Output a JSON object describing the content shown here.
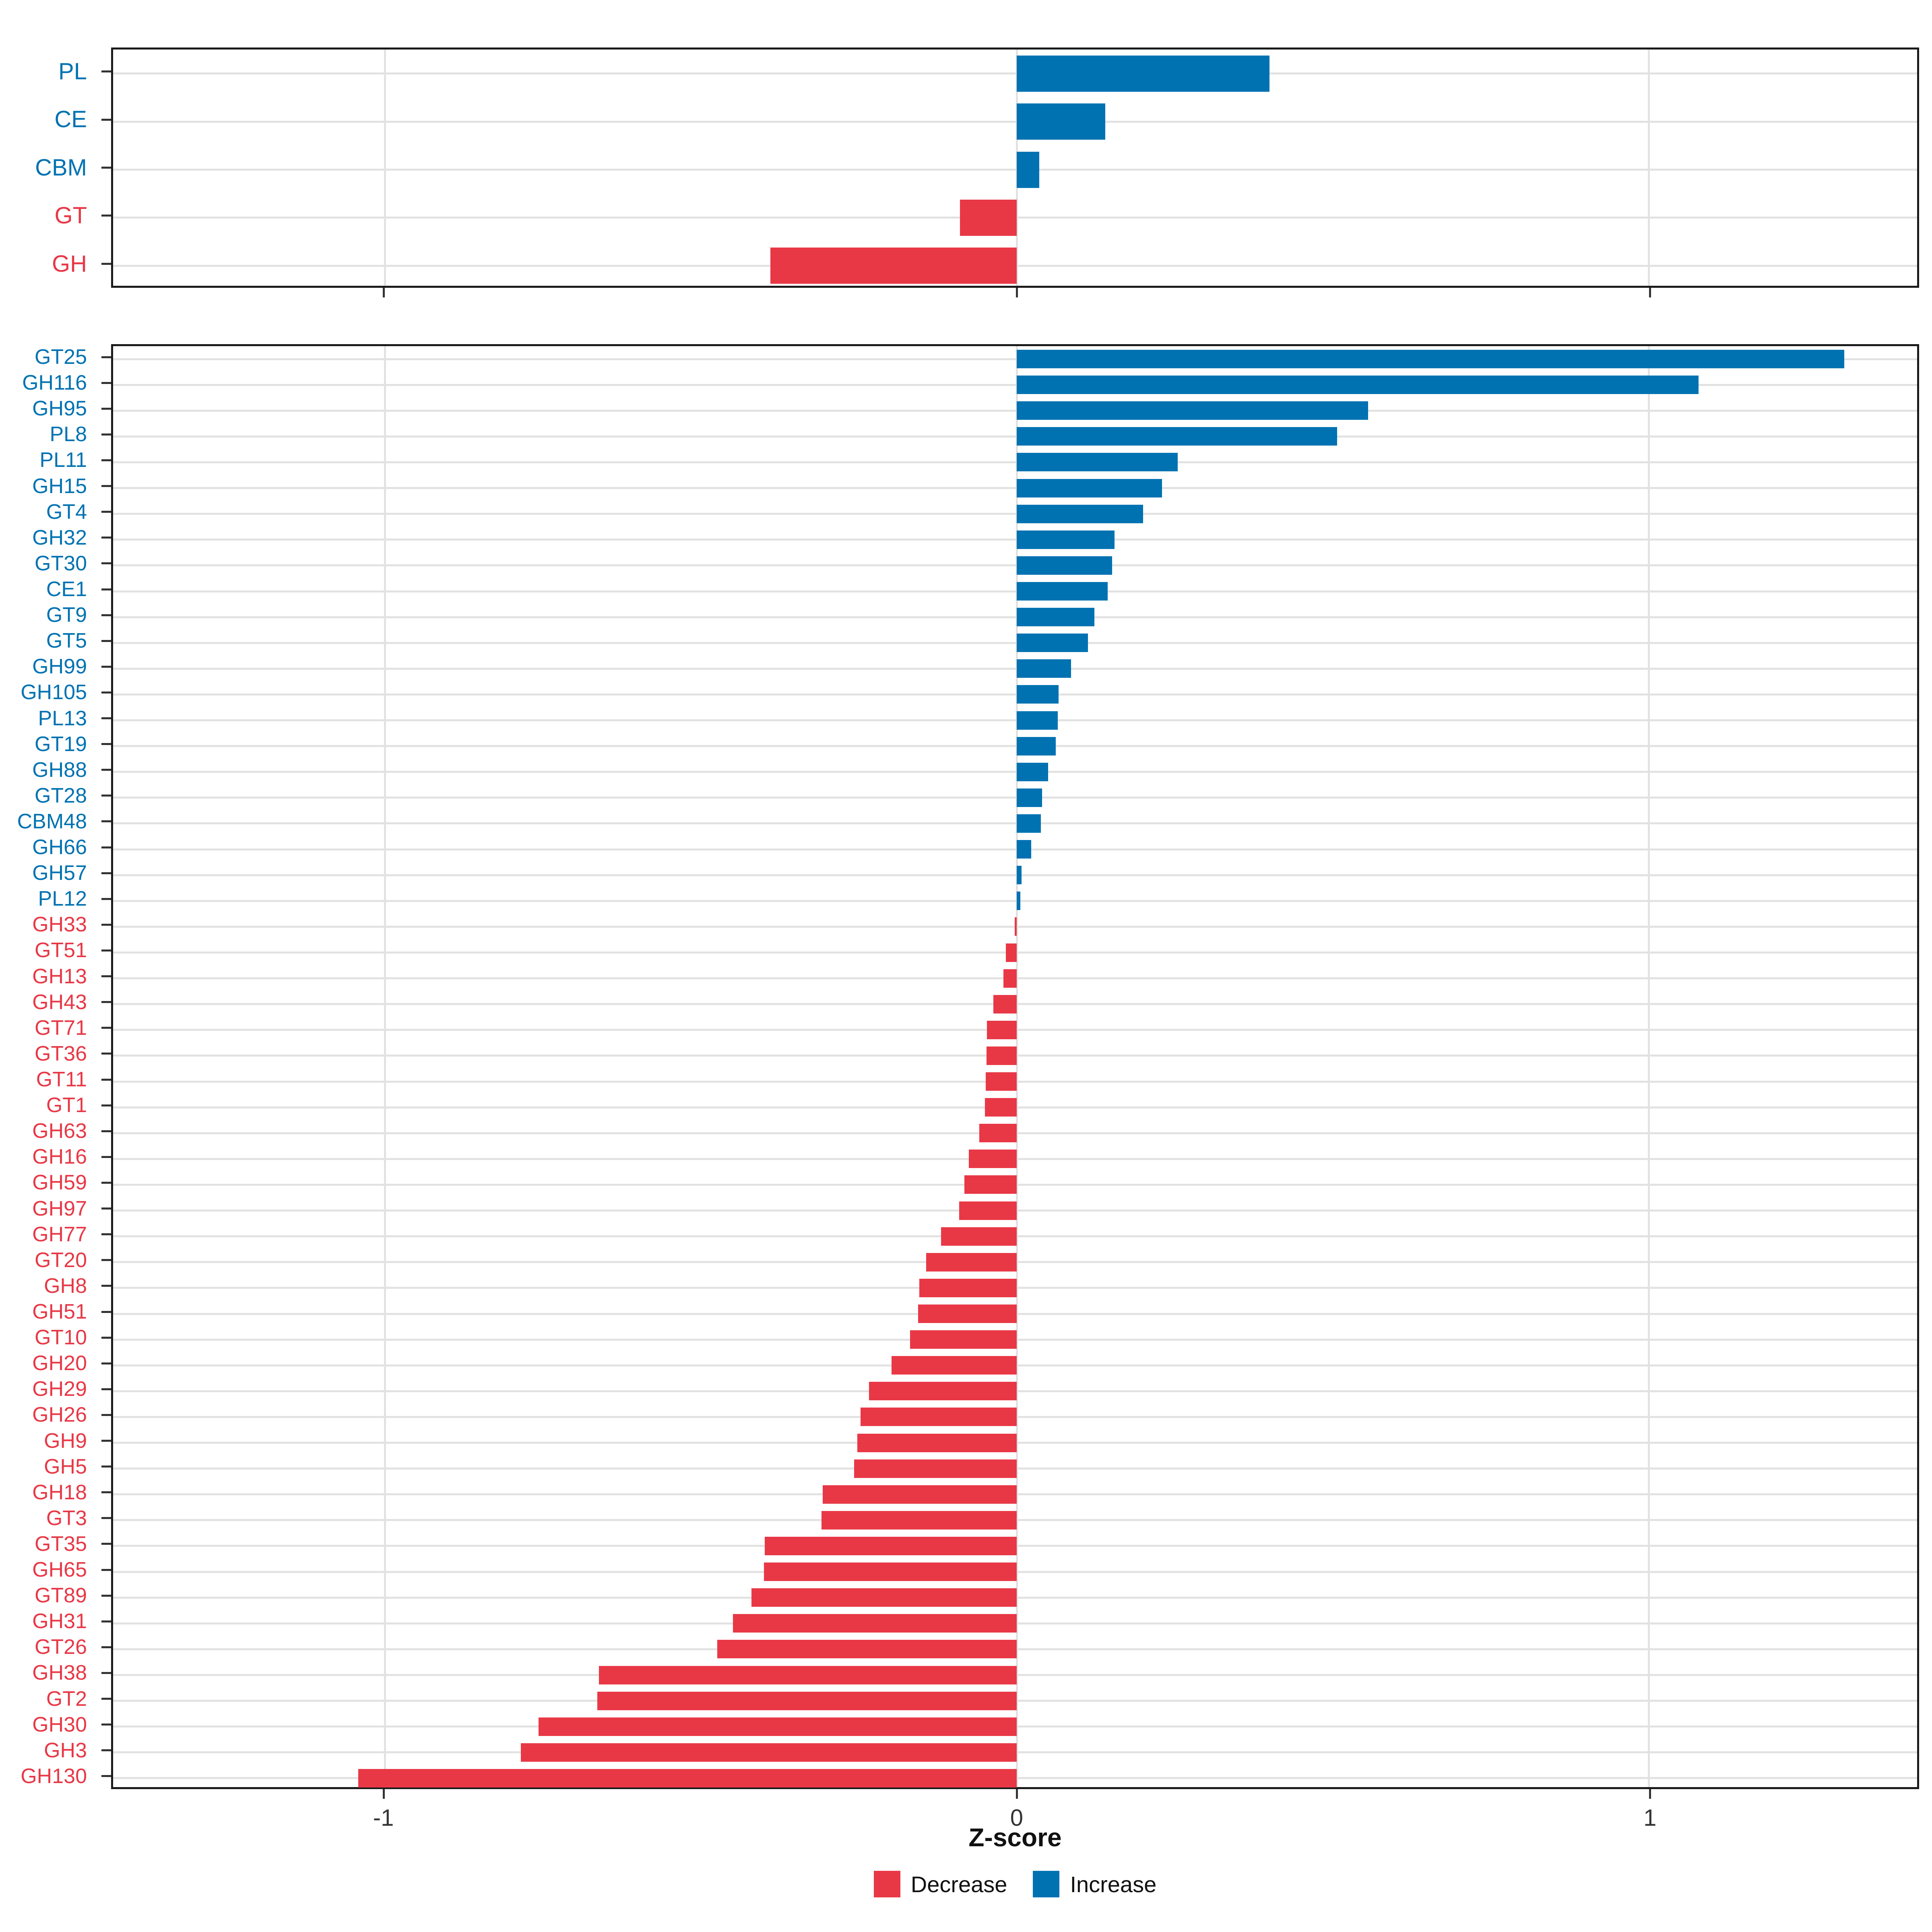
{
  "axis": {
    "label": "Z-score",
    "ticks": [
      {
        "value": -1,
        "label": "-1"
      },
      {
        "value": 0,
        "label": "0"
      },
      {
        "value": 1,
        "label": "1"
      }
    ],
    "xlim": [
      -1.43,
      1.425
    ]
  },
  "colors": {
    "decrease": "#E83846",
    "increase": "#0072B2"
  },
  "legend": [
    {
      "label": "Decrease",
      "color": "#E83846"
    },
    {
      "label": "Increase",
      "color": "#0072B2"
    }
  ],
  "chart_data": [
    {
      "type": "bar",
      "orientation": "horizontal",
      "panel": "enzyme-classes",
      "categories": [
        "PL",
        "CE",
        "CBM",
        "GT",
        "GH"
      ],
      "values": [
        0.4,
        0.14,
        0.036,
        -0.09,
        -0.39
      ],
      "xlabel": "Z-score",
      "xlim": [
        -1.43,
        1.425
      ],
      "grid": true,
      "legend_position": "bottom"
    },
    {
      "type": "bar",
      "orientation": "horizontal",
      "panel": "enzyme-families",
      "categories": [
        "GT25",
        "GH116",
        "GH95",
        "PL8",
        "PL11",
        "GH15",
        "GT4",
        "GH32",
        "GT30",
        "CE1",
        "GT9",
        "GT5",
        "GH99",
        "GH105",
        "PL13",
        "GT19",
        "GH88",
        "GT28",
        "CBM48",
        "GH66",
        "GH57",
        "PL12",
        "GH33",
        "GT51",
        "GH13",
        "GH43",
        "GT71",
        "GT36",
        "GT11",
        "GT1",
        "GH63",
        "GH16",
        "GH59",
        "GH97",
        "GH77",
        "GT20",
        "GH8",
        "GH51",
        "GT10",
        "GH20",
        "GH29",
        "GH26",
        "GH9",
        "GH5",
        "GH18",
        "GT3",
        "GT35",
        "GH65",
        "GT89",
        "GH31",
        "GT26",
        "GH38",
        "GT2",
        "GH30",
        "GH3",
        "GH130"
      ],
      "values": [
        1.31,
        1.079,
        0.556,
        0.507,
        0.255,
        0.23,
        0.2,
        0.155,
        0.151,
        0.144,
        0.123,
        0.113,
        0.086,
        0.066,
        0.065,
        0.062,
        0.05,
        0.04,
        0.038,
        0.023,
        0.008,
        0.006,
        -0.003,
        -0.017,
        -0.021,
        -0.037,
        -0.047,
        -0.048,
        -0.049,
        -0.05,
        -0.059,
        -0.076,
        -0.083,
        -0.091,
        -0.12,
        -0.143,
        -0.154,
        -0.156,
        -0.169,
        -0.198,
        -0.234,
        -0.247,
        -0.252,
        -0.257,
        -0.307,
        -0.309,
        -0.399,
        -0.4,
        -0.42,
        -0.449,
        -0.474,
        -0.661,
        -0.664,
        -0.757,
        -0.785,
        -1.042
      ],
      "xlabel": "Z-score",
      "xlim": [
        -1.43,
        1.425
      ],
      "grid": true,
      "legend_position": "bottom"
    }
  ]
}
